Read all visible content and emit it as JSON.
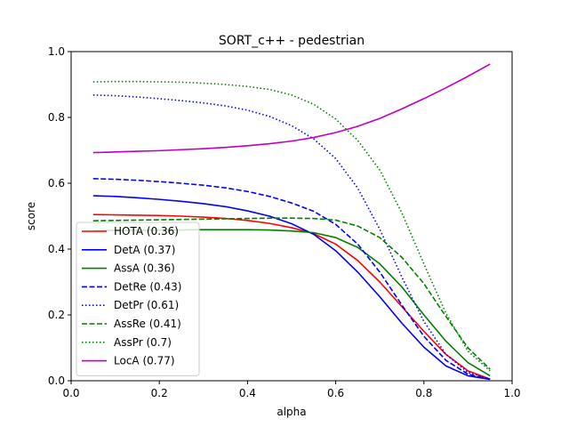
{
  "chart_data": {
    "type": "line",
    "title": "SORT_c++ - pedestrian",
    "xlabel": "alpha",
    "ylabel": "score",
    "xlim": [
      0.0,
      1.0
    ],
    "ylim": [
      0.0,
      1.0
    ],
    "xticks": [
      "0.0",
      "0.2",
      "0.4",
      "0.6",
      "0.8",
      "1.0"
    ],
    "yticks": [
      "0.0",
      "0.2",
      "0.4",
      "0.6",
      "0.8",
      "1.0"
    ],
    "grid": false,
    "legend_position": "lower-left",
    "x": [
      0.05,
      0.1,
      0.15,
      0.2,
      0.25,
      0.3,
      0.35,
      0.4,
      0.45,
      0.5,
      0.55,
      0.6,
      0.65,
      0.7,
      0.75,
      0.8,
      0.85,
      0.9,
      0.95
    ],
    "series": [
      {
        "name": "HOTA (0.36)",
        "color": "#ff0000",
        "dash": "solid",
        "values": [
          0.505,
          0.504,
          0.503,
          0.502,
          0.5,
          0.497,
          0.493,
          0.487,
          0.478,
          0.465,
          0.447,
          0.415,
          0.365,
          0.3,
          0.225,
          0.15,
          0.08,
          0.03,
          0.005
        ]
      },
      {
        "name": "DetA (0.37)",
        "color": "#0000ff",
        "dash": "solid",
        "values": [
          0.562,
          0.56,
          0.556,
          0.551,
          0.545,
          0.538,
          0.529,
          0.516,
          0.5,
          0.477,
          0.445,
          0.395,
          0.33,
          0.255,
          0.175,
          0.102,
          0.045,
          0.015,
          0.004
        ]
      },
      {
        "name": "AssA (0.36)",
        "color": "#008000",
        "dash": "solid",
        "values": [
          0.456,
          0.457,
          0.457,
          0.458,
          0.458,
          0.459,
          0.459,
          0.459,
          0.458,
          0.455,
          0.45,
          0.435,
          0.405,
          0.355,
          0.285,
          0.2,
          0.12,
          0.055,
          0.015
        ]
      },
      {
        "name": "DetRe (0.43)",
        "color": "#0000ff",
        "dash": "dashed",
        "values": [
          0.614,
          0.612,
          0.609,
          0.605,
          0.6,
          0.594,
          0.586,
          0.575,
          0.56,
          0.54,
          0.515,
          0.475,
          0.415,
          0.33,
          0.23,
          0.135,
          0.062,
          0.02,
          0.005
        ]
      },
      {
        "name": "DetPr (0.61)",
        "color": "#0000ff",
        "dash": "dotted",
        "values": [
          0.868,
          0.866,
          0.862,
          0.857,
          0.851,
          0.844,
          0.835,
          0.822,
          0.803,
          0.775,
          0.735,
          0.675,
          0.585,
          0.46,
          0.315,
          0.18,
          0.08,
          0.025,
          0.005
        ]
      },
      {
        "name": "AssRe (0.41)",
        "color": "#008000",
        "dash": "dashed",
        "values": [
          0.486,
          0.487,
          0.488,
          0.489,
          0.49,
          0.491,
          0.492,
          0.493,
          0.494,
          0.494,
          0.493,
          0.488,
          0.47,
          0.435,
          0.375,
          0.295,
          0.195,
          0.1,
          0.035
        ]
      },
      {
        "name": "AssPr (0.7)",
        "color": "#008000",
        "dash": "dotted",
        "values": [
          0.908,
          0.909,
          0.909,
          0.908,
          0.907,
          0.904,
          0.9,
          0.894,
          0.885,
          0.868,
          0.84,
          0.795,
          0.73,
          0.64,
          0.51,
          0.355,
          0.205,
          0.09,
          0.03
        ]
      },
      {
        "name": "LocA (0.77)",
        "color": "#bf00bf",
        "dash": "solid",
        "values": [
          0.693,
          0.695,
          0.697,
          0.699,
          0.702,
          0.705,
          0.709,
          0.714,
          0.72,
          0.728,
          0.739,
          0.754,
          0.773,
          0.797,
          0.826,
          0.857,
          0.89,
          0.925,
          0.962
        ]
      }
    ]
  }
}
